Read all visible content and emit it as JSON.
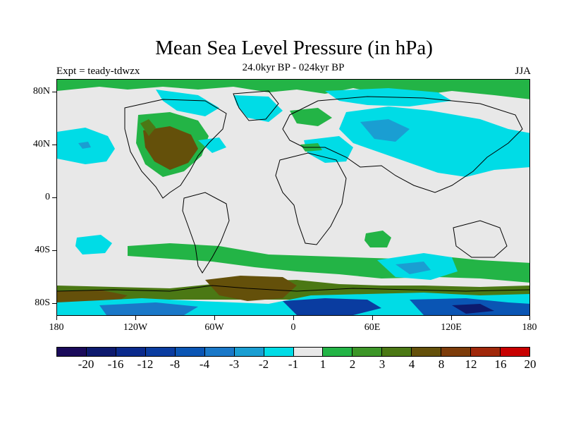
{
  "title": "Mean Sea Level Pressure (in hPa)",
  "subtitle": "24.0kyr BP - 024kyr BP",
  "expt_label": "Expt = teady-tdwzx",
  "season": "JJA",
  "lat_labels": [
    "80N",
    "40N",
    "0",
    "40S",
    "80S"
  ],
  "lat_values": [
    80,
    40,
    0,
    -40,
    -80
  ],
  "lon_labels": [
    "180",
    "120W",
    "60W",
    "0",
    "60E",
    "120E",
    "180"
  ],
  "lon_values": [
    -180,
    -120,
    -60,
    0,
    60,
    120,
    180
  ],
  "colorbar": {
    "labels": [
      "-20",
      "-16",
      "-12",
      "-8",
      "-4",
      "-3",
      "-2",
      "-1",
      "1",
      "2",
      "3",
      "4",
      "8",
      "12",
      "16",
      "20"
    ],
    "colors": [
      "#1a0a5a",
      "#0d1a6e",
      "#0a2a8c",
      "#0a3ca0",
      "#0a55b4",
      "#1a78c8",
      "#1a9ed2",
      "#00dce6",
      "#e8e8e8",
      "#23b446",
      "#3c9628",
      "#4b7814",
      "#64500a",
      "#7d3c0a",
      "#a0280a",
      "#c80000"
    ]
  },
  "colors": {
    "neutral": "#e8e8e8",
    "coast": "#000000"
  }
}
